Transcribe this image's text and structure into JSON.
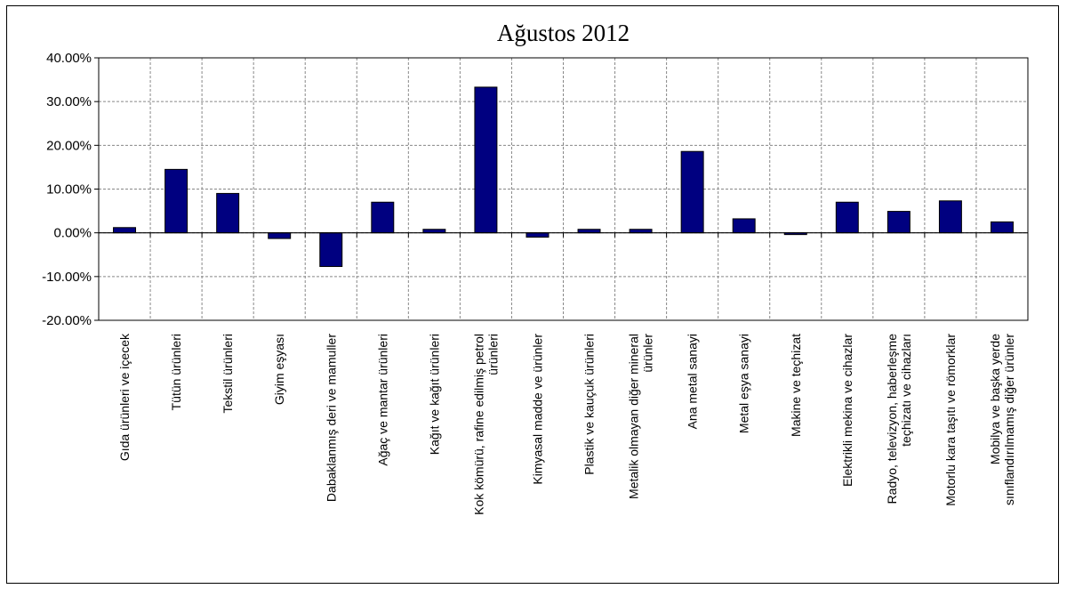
{
  "chart_data": {
    "type": "bar",
    "title": "Ağustos 2012",
    "xlabel": "",
    "ylabel": "",
    "ylim": [
      -20,
      40
    ],
    "yticks": [
      40,
      30,
      20,
      10,
      0,
      -10,
      -20
    ],
    "ytick_labels": [
      "40.00%",
      "30.00%",
      "20.00%",
      "10.00%",
      "0.00%",
      "-10.00%",
      "-20.00%"
    ],
    "grid": true,
    "bar_color": "#000080",
    "categories": [
      [
        "Gıda ürünleri ve içecek"
      ],
      [
        "Tütün ürünleri"
      ],
      [
        "Tekstil ürünleri"
      ],
      [
        "Giyim eşyası"
      ],
      [
        "Dabaklanmış deri ve mamuller"
      ],
      [
        "Ağaç ve mantar ürünleri"
      ],
      [
        "Kağıt ve kağıt ürünleri"
      ],
      [
        "Kok kömürü, rafine edilmiş petrol",
        "ürünleri"
      ],
      [
        "Kimyasal madde ve ürünler"
      ],
      [
        "Plastik ve kauçuk ürünleri"
      ],
      [
        "Metalik olmayan diğer mineral",
        "ürünler"
      ],
      [
        "Ana metal sanayi"
      ],
      [
        "Metal eşya sanayi"
      ],
      [
        "Makine ve teçhizat"
      ],
      [
        "Elektrikli mekina ve cihazlar"
      ],
      [
        "Radyo, televizyon, haberleşme",
        "teçhizatı ve cihazları"
      ],
      [
        "Motorlu kara taşıtı ve römorklar"
      ],
      [
        "Mobilya ve başka yerde",
        "sınıflandırılmamış diğer ürünler"
      ]
    ],
    "values": [
      1.2,
      14.5,
      9.0,
      -1.3,
      -7.7,
      7.0,
      0.8,
      33.3,
      -1.0,
      0.8,
      0.8,
      18.6,
      3.2,
      -0.4,
      7.0,
      4.9,
      7.3,
      2.5
    ]
  }
}
